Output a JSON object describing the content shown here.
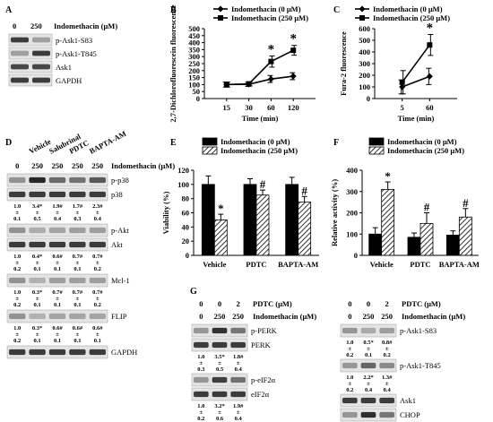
{
  "panels": {
    "A": {
      "label": "A",
      "header_doses": [
        "0",
        "250"
      ],
      "header_treatment": "Indomethacin (μM)",
      "blots": [
        "p-Ask1-S83",
        "p-Ask1-T845",
        "Ask1",
        "GAPDH"
      ]
    },
    "D": {
      "label": "D",
      "conditions": [
        "Vehicle",
        "Salubrinal",
        "PDTC",
        "BAPTA-AM"
      ],
      "doses": [
        "0",
        "250",
        "250",
        "250",
        "250"
      ],
      "treatment": "Indomethacin (μM)",
      "rows": [
        {
          "blots": [
            "p-p38",
            "p38"
          ],
          "quant": [
            "1.0",
            "3.4*",
            "1.9#",
            "1.7#",
            "2.3#"
          ],
          "sd": [
            "0.1",
            "0.5",
            "0.4",
            "0.3",
            "0.4"
          ]
        },
        {
          "blots": [
            "p-Akt",
            "Akt"
          ],
          "quant": [
            "1.0",
            "0.4*",
            "0.6#",
            "0.7#",
            "0.7#"
          ],
          "sd": [
            "0.2",
            "0.1",
            "0.1",
            "0.1",
            "0.2"
          ]
        },
        {
          "blots": [
            "Mcl-1"
          ],
          "quant": [
            "1.0",
            "0.3*",
            "0.7#",
            "0.7#",
            "0.7#"
          ],
          "sd": [
            "0.2",
            "0.1",
            "0.1",
            "0.1",
            "0.2"
          ]
        },
        {
          "blots": [
            "FLIP"
          ],
          "quant": [
            "1.0",
            "0.3*",
            "0.6#",
            "0.6#",
            "0.6#"
          ],
          "sd": [
            "0.2",
            "0.1",
            "0.1",
            "0.1",
            "0.1"
          ]
        },
        {
          "blots": [
            "GAPDH"
          ],
          "quant": [],
          "sd": []
        }
      ]
    },
    "G": {
      "label": "G",
      "pdtc_doses": [
        "0",
        "0",
        "2"
      ],
      "pdtc_label": "PDTC (μM)",
      "indo_doses": [
        "0",
        "250",
        "250"
      ],
      "indo_label": "Indomethacin (μM)",
      "left_rows": [
        {
          "blots": [
            "p-PERK",
            "PERK"
          ],
          "quant": [
            "1.0",
            "3.5*",
            "1.8#"
          ],
          "sd": [
            "0.3",
            "0.5",
            "0.4"
          ]
        },
        {
          "blots": [
            "p-eIF2α",
            "eIF2α"
          ],
          "quant": [
            "1.0",
            "3.2*",
            "1.9#"
          ],
          "sd": [
            "0.2",
            "0.6",
            "0.4"
          ]
        },
        {
          "blots": [
            "GAPDH"
          ],
          "quant": [],
          "sd": []
        }
      ],
      "right_rows": [
        {
          "blots": [
            "p-Ask1-S83"
          ],
          "quant": [
            "1.0",
            "0.5*",
            "0.8#"
          ],
          "sd": [
            "0.2",
            "0.1",
            "0.2"
          ]
        },
        {
          "blots": [
            "p-Ask1-T845"
          ],
          "quant": [
            "1.0",
            "2.2*",
            "1.3#"
          ],
          "sd": [
            "0.2",
            "0.4",
            "0.4"
          ]
        },
        {
          "blots": [
            "Ask1"
          ],
          "quant": [],
          "sd": []
        },
        {
          "blots": [
            "CHOP"
          ],
          "quant": [
            "1.0",
            "3.6*",
            "1.8#"
          ],
          "sd": [
            "0.3",
            "0.5",
            "0.4"
          ]
        }
      ]
    }
  },
  "chart_data": [
    {
      "panel": "B",
      "type": "line",
      "ylabel": "2,7-Dichlorofluorescein fluorescence",
      "xlabel": "Time (min)",
      "categories": [
        "15",
        "30",
        "60",
        "120"
      ],
      "ylim": [
        0,
        500
      ],
      "yticks": [
        "0",
        "50",
        "100",
        "150",
        "200",
        "250",
        "300",
        "350",
        "400",
        "450",
        "500"
      ],
      "series": [
        {
          "name": "Indomethacin (0 μM)",
          "values": [
            100,
            102,
            140,
            160
          ],
          "errors": [
            18,
            15,
            25,
            25
          ]
        },
        {
          "name": "Indomethacin (250 μM)",
          "values": [
            100,
            105,
            265,
            345
          ],
          "errors": [
            18,
            15,
            40,
            35
          ]
        }
      ],
      "markers": [
        {
          "category": "60",
          "text": "*"
        },
        {
          "category": "120",
          "text": "*"
        }
      ]
    },
    {
      "panel": "C",
      "type": "line",
      "ylabel": "Fura-2 fluorescence",
      "xlabel": "Time (min)",
      "categories": [
        "5",
        "60"
      ],
      "ylim": [
        0,
        600
      ],
      "yticks": [
        "0",
        "100",
        "200",
        "300",
        "400",
        "500",
        "600"
      ],
      "series": [
        {
          "name": "Indomethacin (0 μM)",
          "values": [
            100,
            190
          ],
          "errors": [
            60,
            70
          ]
        },
        {
          "name": "Indomethacin (250 μM)",
          "values": [
            140,
            460
          ],
          "errors": [
            100,
            90
          ]
        }
      ],
      "markers": [
        {
          "category": "60",
          "text": "*"
        }
      ]
    },
    {
      "panel": "E",
      "type": "bar",
      "ylabel": "Viability (%)",
      "categories": [
        "Vehicle",
        "PDTC",
        "BAPTA-AM"
      ],
      "ylim": [
        0,
        120
      ],
      "yticks": [
        "0",
        "20",
        "40",
        "60",
        "80",
        "100",
        "120"
      ],
      "series": [
        {
          "name": "Indomethacin (0 μM)",
          "values": [
            100,
            100,
            100
          ],
          "errors": [
            12,
            8,
            10
          ],
          "marks": [
            "",
            "",
            ""
          ]
        },
        {
          "name": "Indomethacin (250 μM)",
          "values": [
            50,
            85,
            75
          ],
          "errors": [
            8,
            7,
            8
          ],
          "marks": [
            "*",
            "#",
            "#"
          ]
        }
      ]
    },
    {
      "panel": "F",
      "type": "bar",
      "ylabel": "Relative activity (%)",
      "categories": [
        "Vehicle",
        "PDTC",
        "BAPTA-AM"
      ],
      "ylim": [
        0,
        400
      ],
      "yticks": [
        "0",
        "100",
        "200",
        "300",
        "400"
      ],
      "series": [
        {
          "name": "Indomethacin (0 μM)",
          "values": [
            100,
            85,
            95
          ],
          "errors": [
            30,
            20,
            20
          ],
          "marks": [
            "",
            "",
            ""
          ]
        },
        {
          "name": "Indomethacin (250 μM)",
          "values": [
            310,
            150,
            180
          ],
          "errors": [
            35,
            50,
            40
          ],
          "marks": [
            "*",
            "#",
            "#"
          ]
        }
      ]
    }
  ]
}
